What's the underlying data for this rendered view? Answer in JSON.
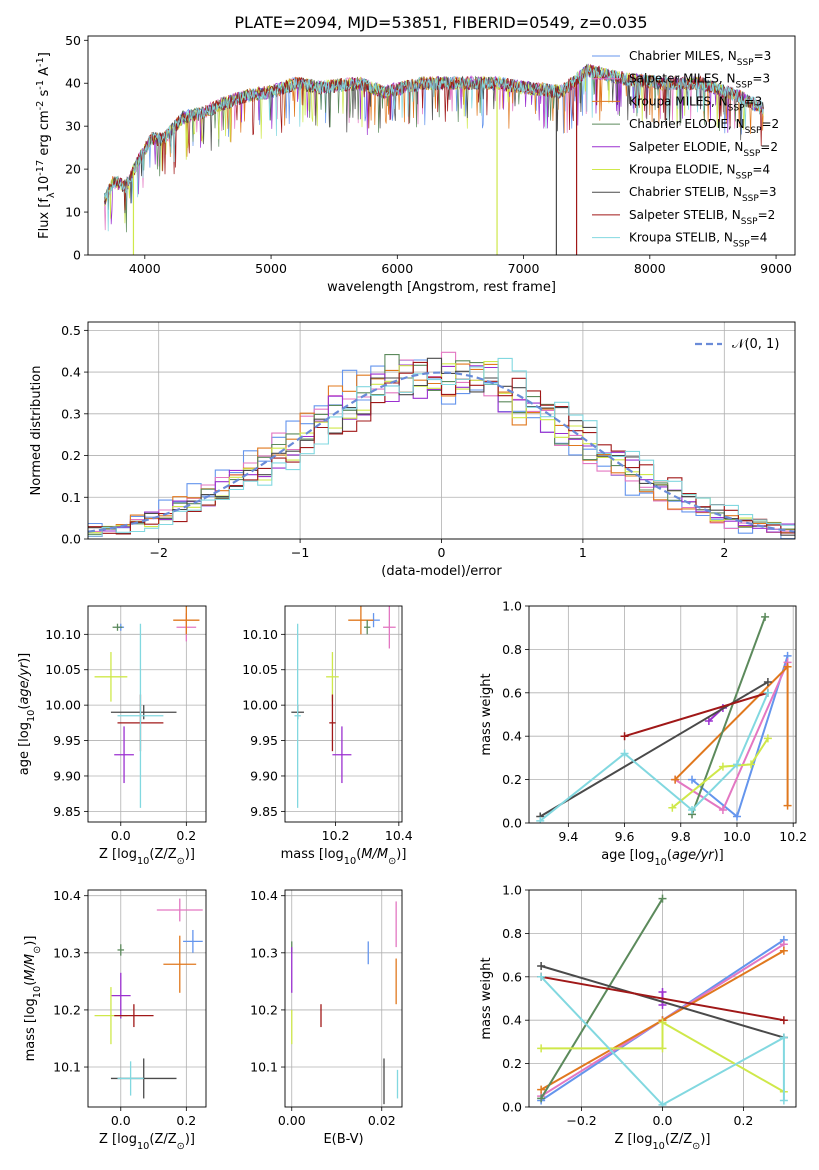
{
  "figure_title": "PLATE=2094, MJD=53851, FIBERID=0549, z=0.035",
  "legend_entries": [
    {
      "label": "Chabrier MILES, N$_{SSP}$=3",
      "color": "#6495ED"
    },
    {
      "label": "Salpeter MILES, N$_{SSP}$=3",
      "color": "#E377C2"
    },
    {
      "label": "Kroupa MILES, N$_{SSP}$=3",
      "color": "#E0781E"
    },
    {
      "label": "Chabrier ELODIE, N$_{SSP}$=2",
      "color": "#5C8A5C"
    },
    {
      "label": "Salpeter ELODIE, N$_{SSP}$=2",
      "color": "#9B30D0"
    },
    {
      "label": "Kroupa ELODIE, N$_{SSP}$=4",
      "color": "#CFE84A"
    },
    {
      "label": "Chabrier STELIB, N$_{SSP}$=3",
      "color": "#4A4A4A"
    },
    {
      "label": "Salpeter STELIB, N$_{SSP}$=2",
      "color": "#A01818"
    },
    {
      "label": "Kroupa STELIB, N$_{SSP}$=4",
      "color": "#82D8E0"
    }
  ],
  "normal_label": "𝒩(0, 1)",
  "chart_data": [
    {
      "id": "spectrum",
      "type": "line",
      "xlabel": "wavelength [Angstrom, rest frame]",
      "ylabel": "Flux [f$_\\lambda$10$^{-17}$ erg cm$^{-2}$ s$^{-1}$ A$^{-1}$]",
      "xlim": [
        3550,
        9150
      ],
      "ylim": [
        0,
        51
      ],
      "xticks": [
        4000,
        5000,
        6000,
        7000,
        8000,
        9000
      ],
      "yticks": [
        0,
        10,
        20,
        30,
        40,
        50
      ],
      "grid": false,
      "legend": "right",
      "continuum": [
        [
          3680,
          13
        ],
        [
          3750,
          17
        ],
        [
          3850,
          16
        ],
        [
          3950,
          22
        ],
        [
          4050,
          27
        ],
        [
          4150,
          27
        ],
        [
          4300,
          32
        ],
        [
          4450,
          33
        ],
        [
          4600,
          35
        ],
        [
          4800,
          37
        ],
        [
          5000,
          38
        ],
        [
          5200,
          40
        ],
        [
          5400,
          39
        ],
        [
          5700,
          40
        ],
        [
          5900,
          38
        ],
        [
          6200,
          40
        ],
        [
          6500,
          40
        ],
        [
          6800,
          40
        ],
        [
          7000,
          39
        ],
        [
          7300,
          38
        ],
        [
          7500,
          43
        ],
        [
          7800,
          41
        ],
        [
          8100,
          40
        ],
        [
          8400,
          40
        ],
        [
          8700,
          37
        ],
        [
          8900,
          34
        ]
      ],
      "dips": [
        {
          "series": 5,
          "x": 3910
        },
        {
          "series": 5,
          "x": 6790
        },
        {
          "series": 6,
          "x": 7260
        },
        {
          "series": 7,
          "x": 7420
        }
      ]
    },
    {
      "id": "residuals",
      "type": "histogram",
      "xlabel": "(data-model)/error",
      "ylabel": "Normed distribution",
      "xlim": [
        -2.5,
        2.5
      ],
      "ylim": [
        0,
        0.52
      ],
      "xticks": [
        -2,
        -1,
        0,
        1,
        2
      ],
      "yticks": [
        0,
        0.1,
        0.2,
        0.3,
        0.4,
        0.5
      ],
      "grid": true,
      "legend": "top-right",
      "bin_width": 0.1,
      "normal_curve": {
        "mean": 0,
        "sigma": 1
      }
    },
    {
      "id": "z_age",
      "type": "errorbar",
      "xlabel": "Z [log$_{10}$(Z/Z$_\\odot$)]",
      "ylabel": "age  [log$_{10}$($age/yr$)]",
      "xlim": [
        -0.1,
        0.26
      ],
      "ylim": [
        9.835,
        10.14
      ],
      "xticks": [
        0.0,
        0.2
      ],
      "yticks": [
        9.85,
        9.9,
        9.95,
        10.0,
        10.05,
        10.1
      ],
      "grid": true,
      "points": [
        {
          "series": 0,
          "x": 0.0,
          "y": 10.11,
          "xerr": 0.01,
          "yerr": 0.005
        },
        {
          "series": 1,
          "x": 0.2,
          "y": 10.11,
          "xerr": 0.03,
          "yerr": 0.02
        },
        {
          "series": 2,
          "x": 0.2,
          "y": 10.12,
          "xerr": 0.04,
          "yerr": 0.02
        },
        {
          "series": 3,
          "x": -0.01,
          "y": 10.11,
          "xerr": 0.015,
          "yerr": 0.005
        },
        {
          "series": 4,
          "x": 0.01,
          "y": 9.93,
          "xerr": 0.03,
          "yerr": 0.04
        },
        {
          "series": 5,
          "x": -0.03,
          "y": 10.04,
          "xerr": 0.05,
          "yerr": 0.035
        },
        {
          "series": 6,
          "x": 0.07,
          "y": 9.99,
          "xerr": 0.1,
          "yerr": 0.01
        },
        {
          "series": 7,
          "x": 0.06,
          "y": 9.975,
          "xerr": 0.07,
          "yerr": 0.04
        },
        {
          "series": 8,
          "x": 0.06,
          "y": 9.985,
          "xerr": 0.07,
          "yerr": 0.13
        }
      ]
    },
    {
      "id": "mass_age",
      "type": "errorbar",
      "xlabel": "mass [log$_{10}$($M/M_\\odot$)]",
      "ylabel": "",
      "xlim": [
        10.04,
        10.41
      ],
      "ylim": [
        9.835,
        10.14
      ],
      "xticks": [
        10.2,
        10.4
      ],
      "yticks": [
        9.85,
        9.9,
        9.95,
        10.0,
        10.05,
        10.1
      ],
      "grid": true,
      "points": [
        {
          "series": 0,
          "x": 10.32,
          "y": 10.12,
          "xerr": 0.02,
          "yerr": 0.01
        },
        {
          "series": 1,
          "x": 10.37,
          "y": 10.11,
          "xerr": 0.02,
          "yerr": 0.03
        },
        {
          "series": 2,
          "x": 10.28,
          "y": 10.12,
          "xerr": 0.04,
          "yerr": 0.02
        },
        {
          "series": 3,
          "x": 10.3,
          "y": 10.11,
          "xerr": 0.01,
          "yerr": 0.01
        },
        {
          "series": 4,
          "x": 10.22,
          "y": 9.93,
          "xerr": 0.03,
          "yerr": 0.04
        },
        {
          "series": 5,
          "x": 10.19,
          "y": 10.04,
          "xerr": 0.02,
          "yerr": 0.035
        },
        {
          "series": 6,
          "x": 10.08,
          "y": 9.99,
          "xerr": 0.02,
          "yerr": 0.01
        },
        {
          "series": 7,
          "x": 10.19,
          "y": 9.975,
          "xerr": 0.01,
          "yerr": 0.04
        },
        {
          "series": 8,
          "x": 10.08,
          "y": 9.985,
          "xerr": 0.01,
          "yerr": 0.13
        }
      ]
    },
    {
      "id": "age_weight",
      "type": "line",
      "xlabel": "age  [log$_{10}$($age/yr$)]",
      "ylabel": "mass weight",
      "xlim": [
        9.26,
        10.21
      ],
      "ylim": [
        0,
        1.0
      ],
      "xticks": [
        9.4,
        9.6,
        9.8,
        10.0,
        10.2
      ],
      "yticks": [
        0.0,
        0.2,
        0.4,
        0.6,
        0.8,
        1.0
      ],
      "grid": true,
      "series": [
        {
          "series": 0,
          "x": [
            9.84,
            10.0,
            10.18
          ],
          "y": [
            0.2,
            0.03,
            0.77
          ]
        },
        {
          "series": 1,
          "x": [
            9.78,
            9.95,
            10.18
          ],
          "y": [
            0.2,
            0.06,
            0.74
          ]
        },
        {
          "series": 2,
          "x": [
            9.78,
            10.18,
            10.18
          ],
          "y": [
            0.2,
            0.72,
            0.08
          ]
        },
        {
          "series": 3,
          "x": [
            9.84,
            10.1
          ],
          "y": [
            0.04,
            0.95
          ]
        },
        {
          "series": 4,
          "x": [
            9.9,
            9.95
          ],
          "y": [
            0.47,
            0.53
          ]
        },
        {
          "series": 5,
          "x": [
            9.77,
            9.95,
            10.05,
            10.11
          ],
          "y": [
            0.07,
            0.26,
            0.27,
            0.39
          ]
        },
        {
          "series": 6,
          "x": [
            9.3,
            10.11
          ],
          "y": [
            0.03,
            0.65
          ]
        },
        {
          "series": 7,
          "x": [
            9.6,
            10.11
          ],
          "y": [
            0.4,
            0.6
          ]
        },
        {
          "series": 8,
          "x": [
            9.3,
            9.6,
            9.84,
            10.0,
            10.11
          ],
          "y": [
            0.01,
            0.32,
            0.06,
            0.27,
            0.6
          ]
        }
      ]
    },
    {
      "id": "z_mass",
      "type": "errorbar",
      "xlabel": "Z [log$_{10}$(Z/Z$_\\odot$)]",
      "ylabel": "mass [log$_{10}$($M/M_\\odot$)]",
      "xlim": [
        -0.1,
        0.26
      ],
      "ylim": [
        10.03,
        10.41
      ],
      "xticks": [
        0.0,
        0.2
      ],
      "yticks": [
        10.1,
        10.2,
        10.3,
        10.4
      ],
      "grid": true,
      "points": [
        {
          "series": 0,
          "x": 0.22,
          "y": 10.32,
          "xerr": 0.03,
          "yerr": 0.02
        },
        {
          "series": 1,
          "x": 0.18,
          "y": 10.375,
          "xerr": 0.07,
          "yerr": 0.02
        },
        {
          "series": 2,
          "x": 0.18,
          "y": 10.28,
          "xerr": 0.05,
          "yerr": 0.05
        },
        {
          "series": 3,
          "x": 0.0,
          "y": 10.305,
          "xerr": 0.01,
          "yerr": 0.01
        },
        {
          "series": 4,
          "x": 0.0,
          "y": 10.225,
          "xerr": 0.03,
          "yerr": 0.04
        },
        {
          "series": 5,
          "x": -0.03,
          "y": 10.19,
          "xerr": 0.05,
          "yerr": 0.05
        },
        {
          "series": 6,
          "x": 0.07,
          "y": 10.08,
          "xerr": 0.1,
          "yerr": 0.035
        },
        {
          "series": 7,
          "x": 0.04,
          "y": 10.19,
          "xerr": 0.06,
          "yerr": 0.02
        },
        {
          "series": 8,
          "x": 0.03,
          "y": 10.08,
          "xerr": 0.04,
          "yerr": 0.03
        }
      ]
    },
    {
      "id": "ebv_mass",
      "type": "errorbar",
      "xlabel": "E(B-V)",
      "ylabel": "",
      "xlim": [
        -0.0015,
        0.0245
      ],
      "ylim": [
        10.03,
        10.41
      ],
      "xticks": [
        0.0,
        0.02
      ],
      "yticks": [
        10.1,
        10.2,
        10.3,
        10.4
      ],
      "grid": true,
      "points": [
        {
          "series": 0,
          "x": 0.017,
          "y": 10.3,
          "xerr": 0,
          "yerr": 0.02
        },
        {
          "series": 1,
          "x": 0.0232,
          "y": 10.35,
          "xerr": 0,
          "yerr": 0.04
        },
        {
          "series": 2,
          "x": 0.0232,
          "y": 10.25,
          "xerr": 0,
          "yerr": 0.04
        },
        {
          "series": 3,
          "x": 0.0,
          "y": 10.31,
          "xerr": 0,
          "yerr": 0.01
        },
        {
          "series": 4,
          "x": 0.0,
          "y": 10.27,
          "xerr": 0,
          "yerr": 0.04
        },
        {
          "series": 5,
          "x": 0.0,
          "y": 10.17,
          "xerr": 0,
          "yerr": 0.03
        },
        {
          "series": 6,
          "x": 0.0205,
          "y": 10.075,
          "xerr": 0,
          "yerr": 0.04
        },
        {
          "series": 7,
          "x": 0.0065,
          "y": 10.19,
          "xerr": 0,
          "yerr": 0.02
        },
        {
          "series": 8,
          "x": 0.0235,
          "y": 10.07,
          "xerr": 0,
          "yerr": 0.025
        }
      ]
    },
    {
      "id": "z_weight",
      "type": "line",
      "xlabel": "Z [log$_{10}$(Z/Z$_\\odot$)]",
      "ylabel": "mass weight",
      "xlim": [
        -0.33,
        0.33
      ],
      "ylim": [
        0,
        1.0
      ],
      "xticks": [
        -0.2,
        0.0,
        0.2
      ],
      "yticks": [
        0.0,
        0.2,
        0.4,
        0.6,
        0.8,
        1.0
      ],
      "grid": true,
      "series": [
        {
          "series": 0,
          "x": [
            -0.3,
            0.0,
            0.3
          ],
          "y": [
            0.03,
            0.4,
            0.77
          ]
        },
        {
          "series": 1,
          "x": [
            -0.3,
            0.0,
            0.3
          ],
          "y": [
            0.05,
            0.4,
            0.75
          ]
        },
        {
          "series": 2,
          "x": [
            -0.3,
            0.0,
            0.3
          ],
          "y": [
            0.08,
            0.4,
            0.72
          ]
        },
        {
          "series": 3,
          "x": [
            -0.3,
            0.0
          ],
          "y": [
            0.04,
            0.96
          ]
        },
        {
          "series": 4,
          "x": [
            0.0,
            0.0
          ],
          "y": [
            0.47,
            0.53
          ]
        },
        {
          "series": 5,
          "x": [
            -0.3,
            0.0,
            0.0,
            0.3
          ],
          "y": [
            0.27,
            0.27,
            0.39,
            0.07
          ]
        },
        {
          "series": 6,
          "x": [
            -0.3,
            0.3
          ],
          "y": [
            0.65,
            0.32
          ]
        },
        {
          "series": 7,
          "x": [
            -0.3,
            0.3
          ],
          "y": [
            0.6,
            0.4
          ]
        },
        {
          "series": 8,
          "x": [
            -0.3,
            0.0,
            0.3,
            0.3
          ],
          "y": [
            0.6,
            0.01,
            0.32,
            0.03
          ]
        }
      ]
    }
  ]
}
